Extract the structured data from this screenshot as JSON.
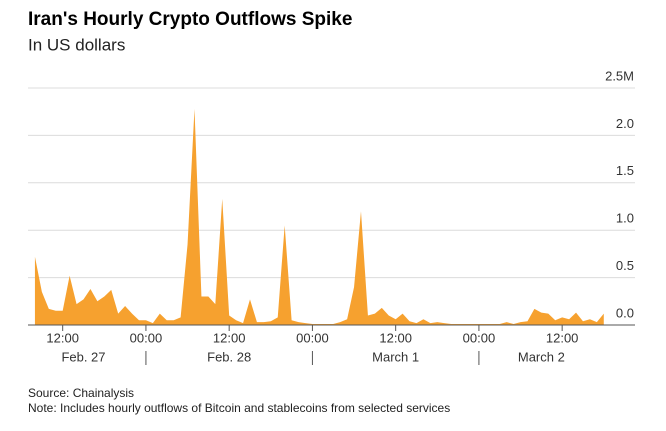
{
  "chart_data": {
    "type": "area",
    "title": "Iran's Hourly Crypto Outflows Spike",
    "subtitle": "In US dollars",
    "source": "Source: Chainalysis",
    "note": "Note: Includes hourly outflows of Bitcoin and stablecoins from selected services",
    "color": "#f6a12f",
    "x": [
      8,
      9,
      10,
      11,
      12,
      13,
      14,
      15,
      16,
      17,
      18,
      19,
      20,
      21,
      22,
      23,
      24,
      25,
      26,
      27,
      28,
      29,
      30,
      31,
      32,
      33,
      34,
      35,
      36,
      37,
      38,
      39,
      40,
      41,
      42,
      43,
      44,
      45,
      46,
      47,
      48,
      49,
      50,
      51,
      52,
      53,
      54,
      55,
      56,
      57,
      58,
      59,
      60,
      61,
      62,
      63,
      64,
      65,
      66,
      67,
      68,
      69,
      70,
      71,
      72,
      73,
      74,
      75,
      76,
      77,
      78,
      79,
      80,
      81,
      82,
      83,
      84,
      85,
      86,
      87,
      88,
      89,
      90
    ],
    "values": [
      0.72,
      0.35,
      0.17,
      0.15,
      0.15,
      0.52,
      0.22,
      0.27,
      0.38,
      0.25,
      0.3,
      0.37,
      0.12,
      0.2,
      0.12,
      0.05,
      0.05,
      0.02,
      0.12,
      0.05,
      0.05,
      0.08,
      0.85,
      2.28,
      0.3,
      0.3,
      0.22,
      1.33,
      0.1,
      0.05,
      0.02,
      0.27,
      0.03,
      0.03,
      0.04,
      0.08,
      1.05,
      0.05,
      0.03,
      0.02,
      0.01,
      0.01,
      0.01,
      0.01,
      0.03,
      0.06,
      0.4,
      1.2,
      0.1,
      0.12,
      0.18,
      0.1,
      0.06,
      0.12,
      0.04,
      0.02,
      0.06,
      0.02,
      0.03,
      0.02,
      0.01,
      0.01,
      0.01,
      0.01,
      0.01,
      0.01,
      0.01,
      0.01,
      0.03,
      0.01,
      0.03,
      0.04,
      0.17,
      0.13,
      0.12,
      0.05,
      0.08,
      0.06,
      0.13,
      0.04,
      0.06,
      0.03,
      0.12
    ],
    "xlim": [
      7,
      94.5
    ],
    "xticks": [
      {
        "value": 12,
        "label": "12:00"
      },
      {
        "value": 24,
        "label": "00:00"
      },
      {
        "value": 36,
        "label": "12:00"
      },
      {
        "value": 48,
        "label": "00:00"
      },
      {
        "value": 60,
        "label": "12:00"
      },
      {
        "value": 72,
        "label": "00:00"
      },
      {
        "value": 84,
        "label": "12:00"
      }
    ],
    "x_date_labels": [
      {
        "value": 15,
        "label": "Feb. 27"
      },
      {
        "value": 36,
        "label": "Feb. 28"
      },
      {
        "value": 60,
        "label": "March 1"
      },
      {
        "value": 81,
        "label": "March 2"
      }
    ],
    "ylim": [
      0,
      2.5
    ],
    "yticks": [
      {
        "value": 0,
        "label": "0.0"
      },
      {
        "value": 0.5,
        "label": "0.5"
      },
      {
        "value": 1,
        "label": "1.0"
      },
      {
        "value": 1.5,
        "label": "1.5"
      },
      {
        "value": 2,
        "label": "2.0"
      },
      {
        "value": 2.5,
        "label": "2.5M"
      }
    ],
    "grid": true
  }
}
